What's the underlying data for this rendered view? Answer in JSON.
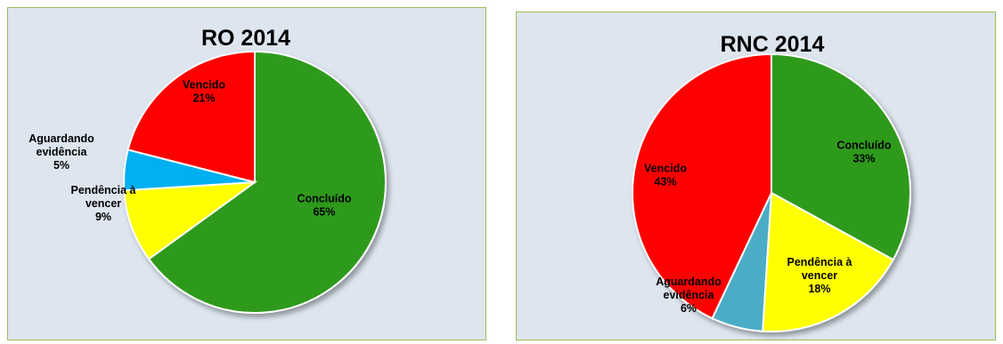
{
  "chart_data": [
    {
      "type": "pie",
      "title": "RO 2014",
      "slices": [
        {
          "label_lines": [
            "Concluído",
            "65%"
          ],
          "value": 65,
          "color": "#2e9a1f"
        },
        {
          "label_lines": [
            "Pendência à",
            "vencer",
            "9%"
          ],
          "value": 9,
          "color": "#ffff00"
        },
        {
          "label_lines": [
            "Aguardando",
            "evidência",
            "5%"
          ],
          "value": 5,
          "color": "#00b0f0"
        },
        {
          "label_lines": [
            "Vencido",
            "21%"
          ],
          "value": 21,
          "color": "#ff0000"
        }
      ]
    },
    {
      "type": "pie",
      "title": "RNC 2014",
      "slices": [
        {
          "label_lines": [
            "Concluído",
            "33%"
          ],
          "value": 33,
          "color": "#2e9a1f"
        },
        {
          "label_lines": [
            "Pendência à",
            "vencer",
            "18%"
          ],
          "value": 18,
          "color": "#ffff00"
        },
        {
          "label_lines": [
            "Aguardando",
            "evidência",
            "6%"
          ],
          "value": 6,
          "color": "#4bacc6"
        },
        {
          "label_lines": [
            "Vencido",
            "43%"
          ],
          "value": 43,
          "color": "#ff0000"
        }
      ]
    }
  ]
}
